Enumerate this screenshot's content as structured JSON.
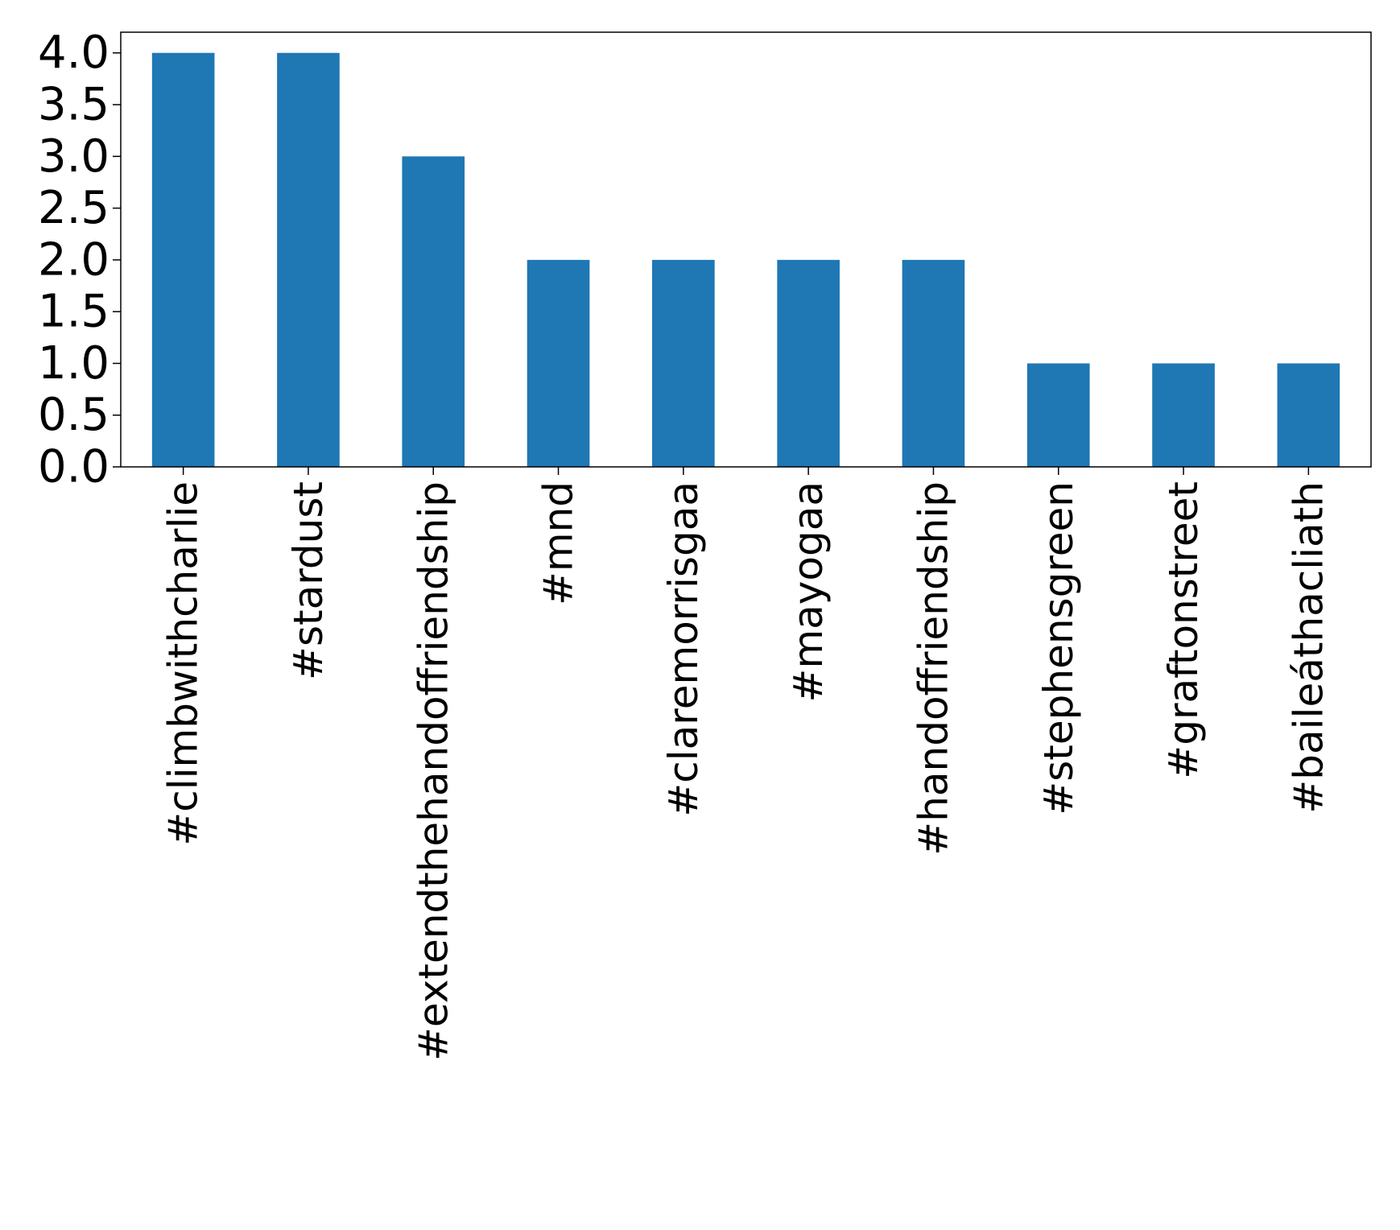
{
  "chart_data": {
    "type": "bar",
    "categories": [
      "#climbwithcharlie",
      "#stardust",
      "#extendthehandoffriendship",
      "#mnd",
      "#claremorrisgaa",
      "#mayogaa",
      "#handoffriendship",
      "#stephensgreen",
      "#graftonstreet",
      "#baileáthacliath"
    ],
    "values": [
      4,
      4,
      3,
      2,
      2,
      2,
      2,
      1,
      1,
      1
    ],
    "y_ticks": [
      "0.0",
      "0.5",
      "1.0",
      "1.5",
      "2.0",
      "2.5",
      "3.0",
      "3.5",
      "4.0"
    ],
    "ylim": [
      0,
      4.2
    ],
    "title": "",
    "xlabel": "",
    "ylabel": "",
    "grid": false,
    "legend": "none",
    "bar_color": "#1f77b4"
  }
}
